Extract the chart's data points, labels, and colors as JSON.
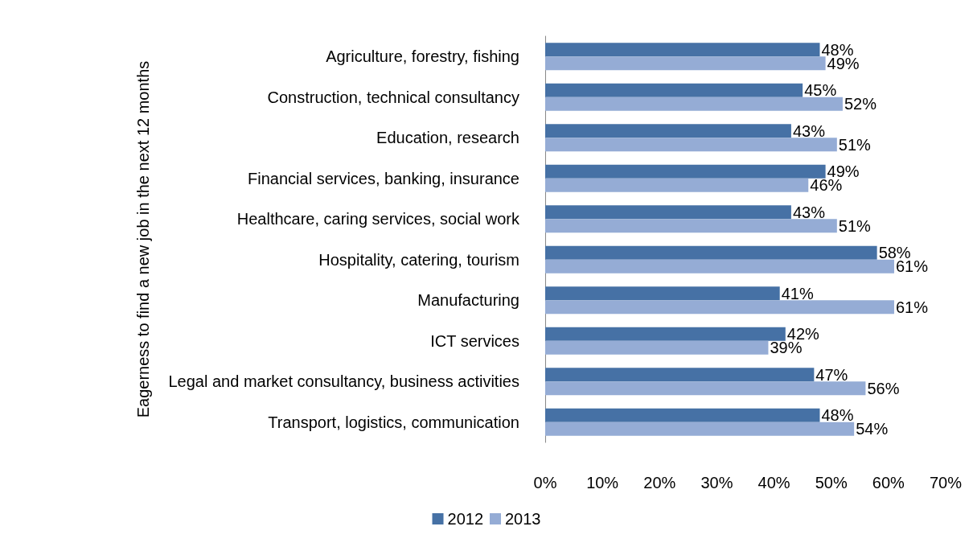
{
  "chart_data": {
    "type": "bar",
    "orientation": "horizontal",
    "ylabel": "Eagerness to find a new job in the next 12 months",
    "categories": [
      "Agriculture, forestry, fishing",
      "Construction, technical consultancy",
      "Education, research",
      "Financial services, banking, insurance",
      "Healthcare, caring services, social work",
      "Hospitality, catering, tourism",
      "Manufacturing",
      "ICT services",
      "Legal and market consultancy, business activities",
      "Transport, logistics, communication"
    ],
    "series": [
      {
        "name": "2012",
        "color": "#4671a5",
        "values": [
          48,
          45,
          43,
          49,
          43,
          58,
          41,
          42,
          47,
          48
        ],
        "value_labels": [
          "48%",
          "45%",
          "43%",
          "49%",
          "43%",
          "58%",
          "41%",
          "42%",
          "47%",
          "48%"
        ]
      },
      {
        "name": "2013",
        "color": "#95acd5",
        "values": [
          49,
          52,
          51,
          46,
          51,
          61,
          61,
          39,
          56,
          54
        ],
        "value_labels": [
          "49%",
          "52%",
          "51%",
          "46%",
          "51%",
          "61%",
          "61%",
          "39%",
          "56%",
          "54%"
        ]
      }
    ],
    "xlim": [
      0,
      70
    ],
    "xticks": [
      {
        "value": 0,
        "label": "0%"
      },
      {
        "value": 10,
        "label": "10%"
      },
      {
        "value": 20,
        "label": "20%"
      },
      {
        "value": 30,
        "label": "30%"
      },
      {
        "value": 40,
        "label": "40%"
      },
      {
        "value": 50,
        "label": "50%"
      },
      {
        "value": 60,
        "label": "60%"
      },
      {
        "value": 70,
        "label": "70%"
      }
    ],
    "grid": false,
    "legend": "bottom"
  }
}
